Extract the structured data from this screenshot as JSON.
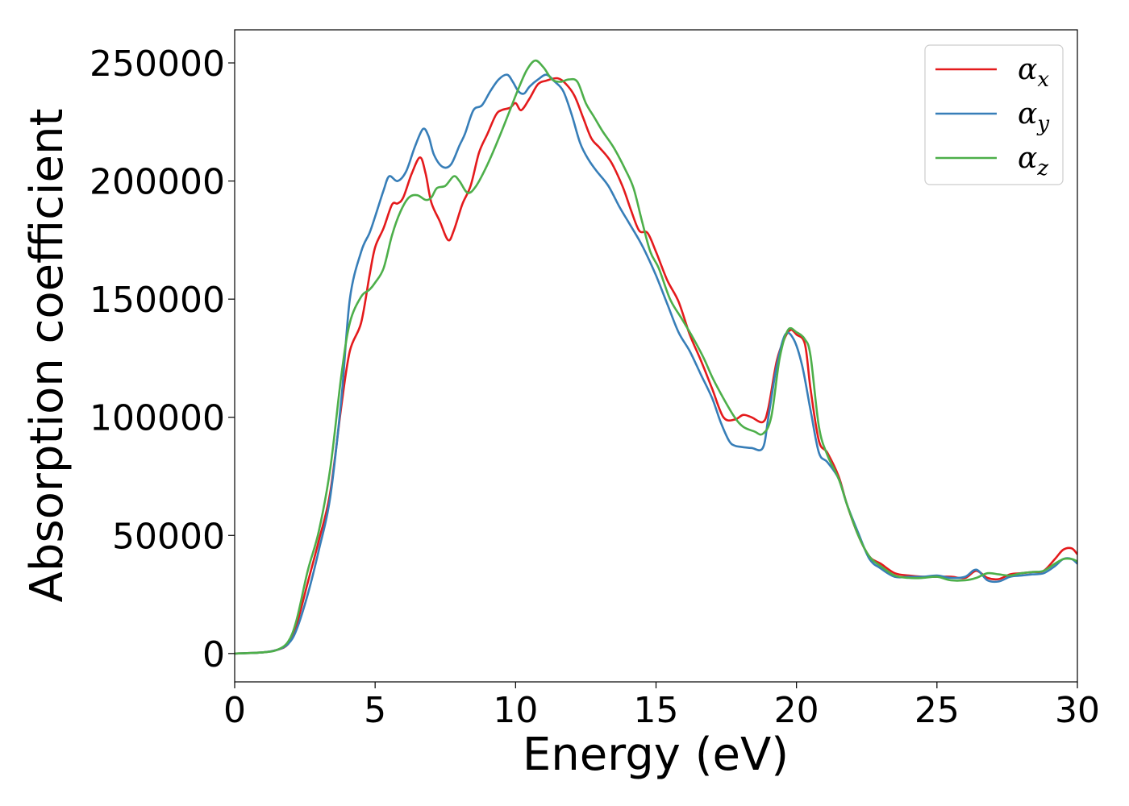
{
  "chart_data": {
    "type": "line",
    "title": "",
    "xlabel": "Energy (eV)",
    "ylabel": "Absorption coefficient",
    "xlim": [
      0,
      30
    ],
    "ylim": [
      -12000,
      264000
    ],
    "xticks": [
      0,
      5,
      10,
      15,
      20,
      25,
      30
    ],
    "xtick_labels": [
      "0",
      "5",
      "10",
      "15",
      "20",
      "25",
      "30"
    ],
    "yticks": [
      0,
      50000,
      100000,
      150000,
      200000,
      250000
    ],
    "ytick_labels": [
      "0",
      "50000",
      "100000",
      "150000",
      "200000",
      "250000"
    ],
    "grid": false,
    "legend_position": "top-right",
    "series": [
      {
        "name": "α",
        "subscript": "x",
        "color": "#e41a1c",
        "x": [
          0,
          1,
          1.5,
          1.9,
          2.2,
          2.6,
          3.0,
          3.4,
          3.8,
          4.1,
          4.5,
          4.8,
          5.0,
          5.3,
          5.6,
          5.8,
          6.0,
          6.3,
          6.6,
          6.8,
          7.0,
          7.3,
          7.6,
          7.8,
          8.1,
          8.4,
          8.7,
          9.0,
          9.3,
          9.5,
          9.8,
          10.0,
          10.2,
          10.5,
          10.8,
          11.1,
          11.5,
          11.8,
          12.1,
          12.4,
          12.7,
          13.0,
          13.4,
          13.8,
          14.1,
          14.4,
          14.7,
          15.0,
          15.4,
          15.8,
          16.2,
          16.6,
          17.0,
          17.4,
          17.8,
          18.1,
          18.4,
          18.8,
          19.0,
          19.3,
          19.6,
          19.8,
          20.0,
          20.3,
          20.5,
          20.8,
          21.1,
          21.5,
          21.8,
          22.2,
          22.6,
          23.0,
          23.5,
          24.0,
          24.5,
          25.0,
          25.5,
          26.0,
          26.4,
          26.8,
          27.2,
          27.6,
          28.0,
          28.4,
          28.8,
          29.2,
          29.5,
          29.8,
          30.0
        ],
        "values": [
          0,
          500,
          1500,
          4000,
          12000,
          30000,
          48000,
          68000,
          105000,
          128000,
          140000,
          160000,
          172000,
          180000,
          190000,
          190500,
          193000,
          203000,
          210000,
          203000,
          191000,
          183000,
          175000,
          179000,
          190000,
          198000,
          212000,
          220000,
          228000,
          230000,
          231000,
          233000,
          230000,
          235000,
          241000,
          242500,
          243500,
          241000,
          236000,
          227000,
          218000,
          214000,
          208000,
          198000,
          188000,
          179000,
          178000,
          170000,
          158000,
          149000,
          135000,
          124000,
          112000,
          100000,
          99000,
          101000,
          100000,
          98000,
          104000,
          124000,
          134000,
          137000,
          135000,
          131000,
          112000,
          90000,
          85000,
          75000,
          63000,
          50000,
          41000,
          38000,
          34000,
          33000,
          32500,
          32500,
          32500,
          32000,
          35000,
          32000,
          31500,
          33500,
          34000,
          34500,
          35000,
          40000,
          44000,
          44500,
          42000
        ]
      },
      {
        "name": "α",
        "subscript": "y",
        "color": "#377eb8",
        "x": [
          0,
          1,
          1.5,
          1.9,
          2.2,
          2.6,
          3.0,
          3.4,
          3.8,
          4.1,
          4.5,
          4.8,
          5.0,
          5.3,
          5.5,
          5.8,
          6.1,
          6.4,
          6.7,
          6.9,
          7.1,
          7.4,
          7.7,
          8.0,
          8.2,
          8.5,
          8.8,
          9.1,
          9.4,
          9.7,
          9.9,
          10.1,
          10.3,
          10.5,
          10.8,
          11.1,
          11.4,
          11.7,
          12.0,
          12.3,
          12.6,
          12.9,
          13.3,
          13.7,
          14.0,
          14.4,
          14.7,
          15.0,
          15.4,
          15.8,
          16.2,
          16.6,
          17.0,
          17.3,
          17.6,
          17.8,
          18.0,
          18.4,
          18.8,
          19.0,
          19.3,
          19.6,
          19.9,
          20.2,
          20.5,
          20.8,
          21.1,
          21.5,
          21.8,
          22.2,
          22.6,
          23.0,
          23.5,
          24.0,
          24.5,
          25.0,
          25.5,
          26.0,
          26.4,
          26.8,
          27.2,
          27.6,
          28.0,
          28.4,
          28.8,
          29.2,
          29.5,
          29.8,
          30.0
        ],
        "values": [
          0,
          500,
          1500,
          4000,
          10000,
          25000,
          44000,
          66000,
          108000,
          150000,
          170000,
          178000,
          185000,
          196000,
          202000,
          200000,
          204000,
          214000,
          222000,
          219000,
          211000,
          206000,
          207000,
          215000,
          220000,
          230000,
          232000,
          238000,
          243000,
          245000,
          242000,
          238000,
          237000,
          240000,
          243000,
          245000,
          242000,
          238000,
          228000,
          216000,
          209000,
          204000,
          198000,
          189000,
          183000,
          175000,
          168000,
          160000,
          148000,
          136000,
          128000,
          118000,
          108000,
          98000,
          90000,
          88000,
          87500,
          87000,
          87000,
          100000,
          122000,
          135000,
          133000,
          122000,
          103000,
          85000,
          81000,
          74000,
          63000,
          51000,
          40000,
          36000,
          32500,
          32500,
          32500,
          33000,
          32000,
          32500,
          35500,
          31000,
          30500,
          32500,
          33000,
          33500,
          34000,
          37000,
          40000,
          40000,
          38000
        ]
      },
      {
        "name": "α",
        "subscript": "z",
        "color": "#4daf4a",
        "x": [
          0,
          1,
          1.5,
          1.9,
          2.2,
          2.6,
          3.0,
          3.4,
          3.8,
          4.1,
          4.5,
          4.8,
          5.0,
          5.3,
          5.6,
          5.9,
          6.2,
          6.5,
          6.8,
          7.0,
          7.2,
          7.5,
          7.8,
          8.0,
          8.3,
          8.6,
          9.0,
          9.4,
          9.8,
          10.1,
          10.4,
          10.7,
          11.0,
          11.3,
          11.6,
          11.9,
          12.2,
          12.5,
          12.8,
          13.1,
          13.5,
          13.9,
          14.2,
          14.5,
          14.8,
          15.1,
          15.5,
          15.9,
          16.3,
          16.7,
          17.0,
          17.4,
          17.8,
          18.1,
          18.5,
          18.8,
          19.1,
          19.4,
          19.7,
          20.0,
          20.3,
          20.5,
          20.8,
          21.1,
          21.5,
          21.8,
          22.2,
          22.6,
          23.0,
          23.5,
          24.0,
          24.5,
          25.0,
          25.5,
          26.0,
          26.4,
          26.8,
          27.2,
          27.6,
          28.0,
          28.4,
          28.8,
          29.2,
          29.5,
          29.8,
          30.0
        ],
        "values": [
          0,
          500,
          1500,
          5000,
          14000,
          35000,
          52000,
          78000,
          118000,
          140000,
          151000,
          154000,
          157000,
          163000,
          177000,
          187000,
          193000,
          194000,
          192000,
          193000,
          197000,
          198000,
          202000,
          200000,
          195000,
          198000,
          207000,
          218000,
          230000,
          239000,
          247000,
          251000,
          248000,
          243000,
          242000,
          243000,
          242000,
          233000,
          227000,
          221000,
          214000,
          205000,
          197000,
          183000,
          170000,
          163000,
          150000,
          142000,
          134000,
          125000,
          117000,
          108000,
          100000,
          96000,
          94000,
          93000,
          100000,
          125000,
          137000,
          136000,
          133000,
          126000,
          96000,
          84000,
          74000,
          63000,
          50000,
          41000,
          37000,
          33000,
          32000,
          32000,
          32500,
          31000,
          31000,
          32000,
          34000,
          33500,
          33000,
          34000,
          34500,
          35000,
          38000,
          40000,
          40000,
          39000
        ]
      }
    ]
  }
}
